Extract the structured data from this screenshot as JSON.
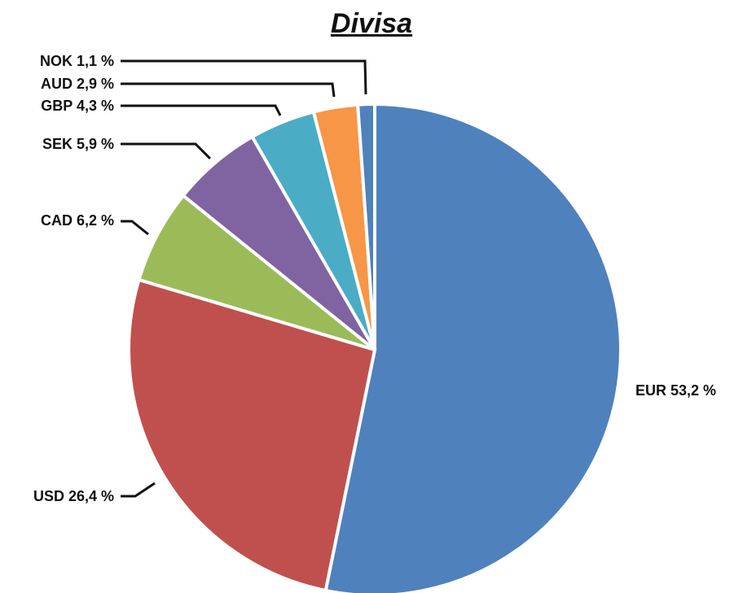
{
  "chart_data": {
    "type": "pie",
    "title": "Divisa",
    "slices": [
      {
        "label": "EUR 53,2 %",
        "category": "EUR",
        "value": 53.2,
        "color": "#4F81BD"
      },
      {
        "label": "USD 26,4 %",
        "category": "USD",
        "value": 26.4,
        "color": "#C0504D"
      },
      {
        "label": "CAD 6,2 %",
        "category": "CAD",
        "value": 6.2,
        "color": "#9BBB59"
      },
      {
        "label": "SEK 5,9 %",
        "category": "SEK",
        "value": 5.9,
        "color": "#8064A2"
      },
      {
        "label": "GBP 4,3 %",
        "category": "GBP",
        "value": 4.3,
        "color": "#4BACC6"
      },
      {
        "label": "AUD 2,9 %",
        "category": "AUD",
        "value": 2.9,
        "color": "#F79646"
      },
      {
        "label": "NOK 1,1 %",
        "category": "NOK",
        "value": 1.1,
        "color": "#4F81BD"
      }
    ],
    "start_angle": "12 o'clock",
    "direction": "clockwise",
    "legend": "none"
  }
}
